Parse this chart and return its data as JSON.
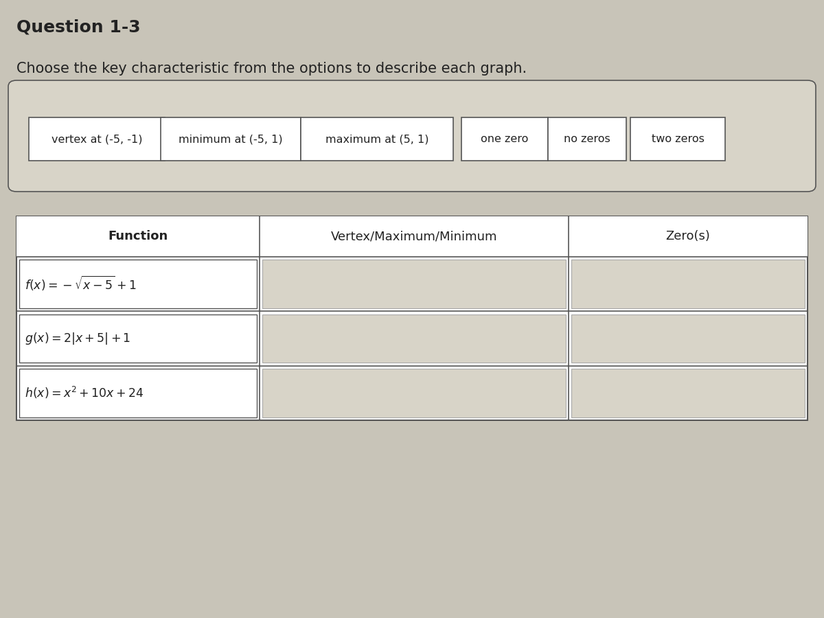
{
  "title": "Question 1-3",
  "instruction": "Choose the key characteristic from the options to describe each graph.",
  "options": [
    "vertex at (-5, -1)",
    "minimum at (-5, 1)",
    "maximum at (5, 1)",
    "one zero",
    "no zeros",
    "two zeros"
  ],
  "table_headers": [
    "Function",
    "Vertex/Maximum/Minimum",
    "Zero(s)"
  ],
  "functions": [
    "f(x) = -\\sqrt{x-5}+1",
    "g(x) = 2|x+5|+1",
    "h(x) = x^2+10x+24"
  ],
  "bg_color": "#c8c4b8",
  "box_color": "#d8d4c8",
  "white_color": "#ffffff",
  "border_color": "#555555",
  "text_color": "#222222",
  "header_color": "#222222"
}
